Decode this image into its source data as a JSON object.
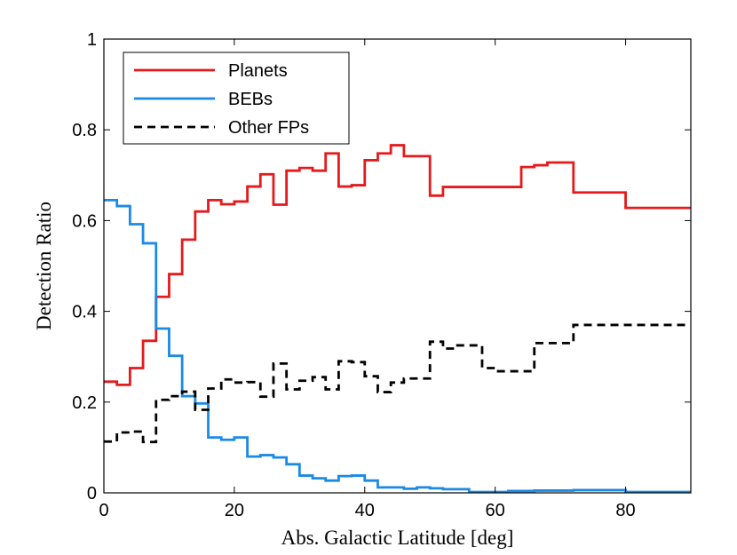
{
  "chart_data": {
    "type": "line",
    "step": true,
    "xlabel": "Abs. Galactic Latitude [deg]",
    "ylabel": "Detection Ratio",
    "xlim": [
      0,
      90
    ],
    "ylim": [
      0,
      1
    ],
    "xticks": [
      0,
      20,
      40,
      60,
      80
    ],
    "yticks": [
      0,
      0.2,
      0.4,
      0.6,
      0.8,
      1
    ],
    "xtick_labels": [
      "0",
      "20",
      "40",
      "60",
      "80"
    ],
    "ytick_labels": [
      "0",
      "0.2",
      "0.4",
      "0.6",
      "0.8",
      "1"
    ],
    "grid": false,
    "legend_position": "top-left",
    "series": [
      {
        "name": "Planets",
        "color": "#e41a1c",
        "style": "solid",
        "x": [
          0,
          2,
          4,
          6,
          8,
          10,
          12,
          14,
          16,
          18,
          20,
          22,
          24,
          26,
          28,
          30,
          32,
          34,
          36,
          38,
          40,
          42,
          44,
          46,
          48,
          50,
          52,
          54,
          56,
          58,
          60,
          62,
          64,
          66,
          68,
          70,
          72,
          74,
          76,
          78,
          80,
          82,
          84,
          86,
          88,
          90
        ],
        "y": [
          0.245,
          0.238,
          0.275,
          0.335,
          0.432,
          0.482,
          0.558,
          0.62,
          0.645,
          0.636,
          0.642,
          0.675,
          0.702,
          0.635,
          0.71,
          0.716,
          0.71,
          0.748,
          0.675,
          0.678,
          0.733,
          0.748,
          0.766,
          0.742,
          0.742,
          0.655,
          0.674,
          0.674,
          0.674,
          0.674,
          0.674,
          0.674,
          0.718,
          0.722,
          0.728,
          0.728,
          0.662,
          0.662,
          0.662,
          0.662,
          0.628,
          0.628,
          0.628,
          0.628,
          0.628,
          0.628
        ]
      },
      {
        "name": "BEBs",
        "color": "#1a8ae5",
        "style": "solid",
        "x": [
          0,
          2,
          4,
          6,
          8,
          10,
          12,
          14,
          16,
          18,
          20,
          22,
          24,
          26,
          28,
          30,
          32,
          34,
          36,
          38,
          40,
          42,
          44,
          46,
          48,
          50,
          52,
          54,
          56,
          58,
          60,
          62,
          64,
          66,
          68,
          70,
          72,
          74,
          76,
          78,
          80,
          82,
          84,
          86,
          88,
          90
        ],
        "y": [
          0.645,
          0.632,
          0.592,
          0.55,
          0.362,
          0.302,
          0.213,
          0.197,
          0.122,
          0.117,
          0.122,
          0.08,
          0.083,
          0.078,
          0.063,
          0.038,
          0.032,
          0.027,
          0.037,
          0.038,
          0.027,
          0.012,
          0.012,
          0.009,
          0.012,
          0.01,
          0.008,
          0.008,
          0.002,
          0.002,
          0.002,
          0.004,
          0.004,
          0.005,
          0.005,
          0.005,
          0.006,
          0.006,
          0.006,
          0.006,
          0.002,
          0.002,
          0.002,
          0.002,
          0.002,
          0.002
        ]
      },
      {
        "name": "Other FPs",
        "color": "#000000",
        "style": "dashed",
        "x": [
          0,
          2,
          4,
          6,
          8,
          10,
          12,
          14,
          16,
          18,
          20,
          22,
          24,
          26,
          28,
          30,
          32,
          34,
          36,
          38,
          40,
          42,
          44,
          46,
          48,
          50,
          52,
          54,
          56,
          58,
          60,
          62,
          64,
          66,
          68,
          70,
          72,
          74,
          76,
          78,
          80,
          82,
          84,
          86,
          88,
          90
        ],
        "y": [
          0.113,
          0.133,
          0.135,
          0.112,
          0.205,
          0.213,
          0.223,
          0.183,
          0.23,
          0.25,
          0.243,
          0.244,
          0.212,
          0.285,
          0.228,
          0.247,
          0.255,
          0.228,
          0.29,
          0.288,
          0.257,
          0.222,
          0.243,
          0.252,
          0.252,
          0.333,
          0.318,
          0.325,
          0.325,
          0.275,
          0.268,
          0.268,
          0.268,
          0.33,
          0.33,
          0.33,
          0.37,
          0.37,
          0.37,
          0.37,
          0.37,
          0.37,
          0.37,
          0.37,
          0.37,
          0.37
        ]
      }
    ]
  }
}
